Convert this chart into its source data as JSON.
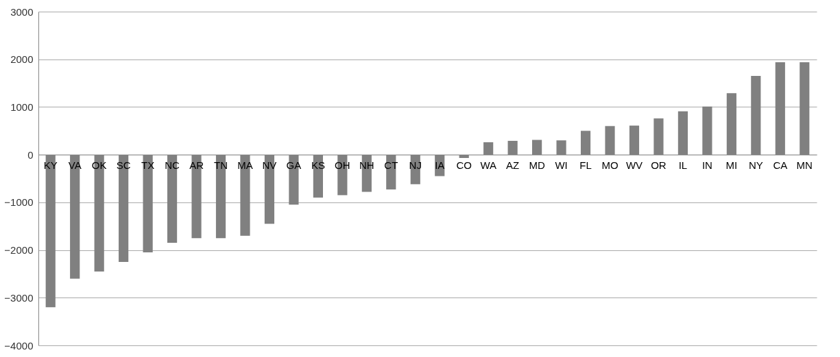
{
  "chart_data": {
    "type": "bar",
    "categories": [
      "KY",
      "VA",
      "OK",
      "SC",
      "TX",
      "NC",
      "AR",
      "TN",
      "MA",
      "NV",
      "GA",
      "KS",
      "OH",
      "NH",
      "CT",
      "NJ",
      "IA",
      "CO",
      "WA",
      "AZ",
      "MD",
      "WI",
      "FL",
      "MO",
      "WV",
      "OR",
      "IL",
      "IN",
      "MI",
      "NY",
      "CA",
      "MN"
    ],
    "values": [
      -3200,
      -2600,
      -2450,
      -2250,
      -2050,
      -1850,
      -1750,
      -1750,
      -1700,
      -1450,
      -1050,
      -900,
      -850,
      -780,
      -730,
      -620,
      -450,
      -70,
      260,
      290,
      310,
      300,
      500,
      600,
      610,
      760,
      910,
      1010,
      1290,
      1650,
      1940,
      1940
    ],
    "color": "#808080",
    "ylim": [
      -4000,
      3000
    ],
    "yticks": [
      -4000,
      -3000,
      -2000,
      -1000,
      0,
      1000,
      2000,
      3000
    ],
    "grid": "y"
  }
}
